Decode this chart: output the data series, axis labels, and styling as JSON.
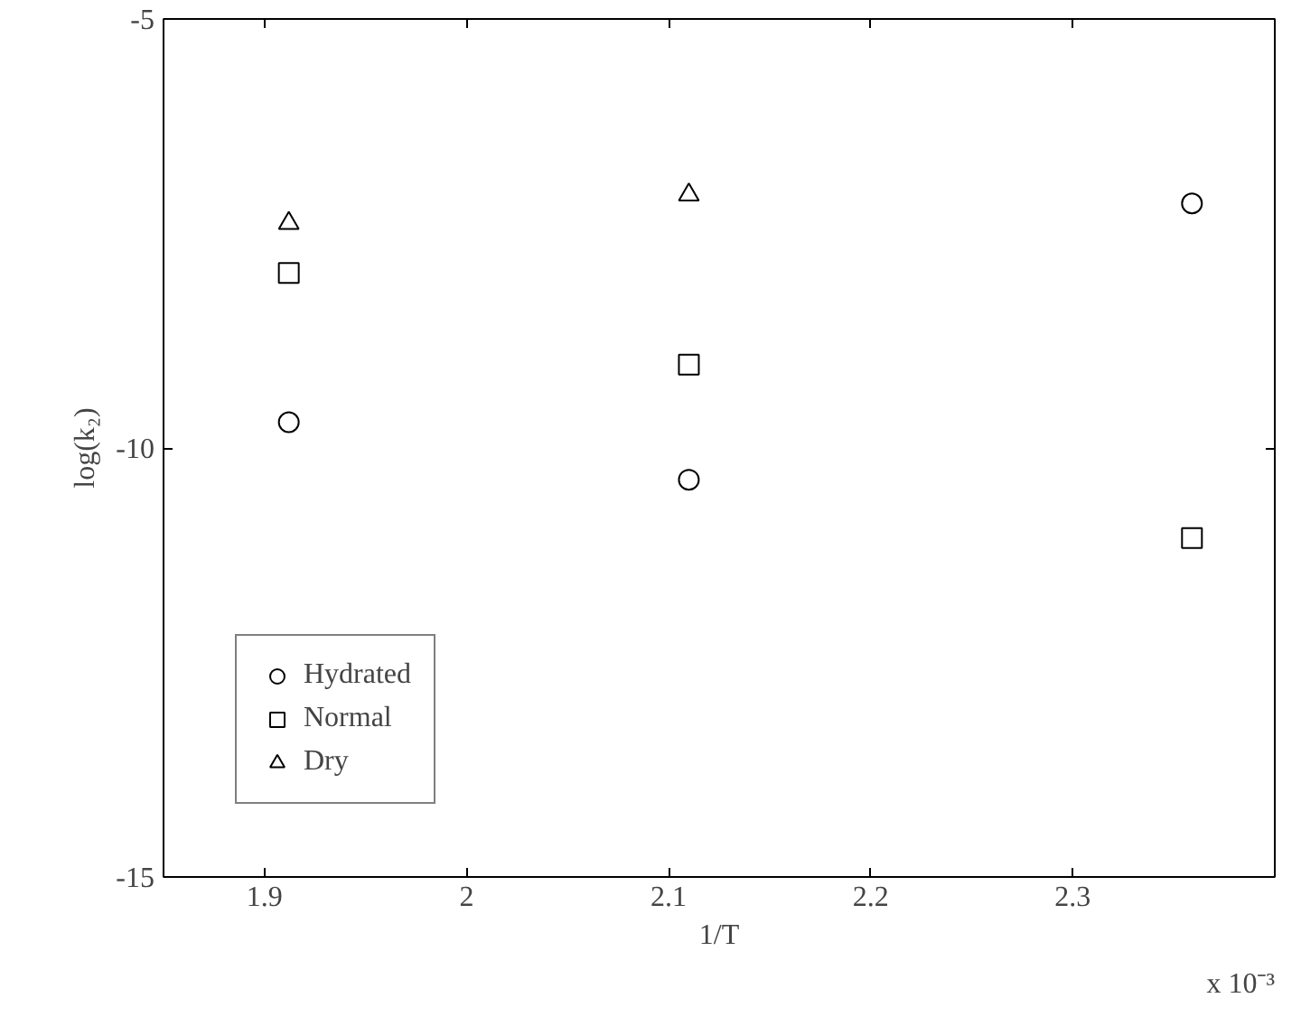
{
  "chart_data": {
    "type": "scatter",
    "xlabel": "1/T",
    "ylabel": "log(k₂)",
    "x": [
      1.912,
      2.11,
      2.359
    ],
    "series": [
      {
        "name": "Hydrated",
        "color": "#000000",
        "marker": "circle",
        "values": [
          -9.7,
          -10.37,
          -7.15
        ]
      },
      {
        "name": "Normal",
        "color": "#000000",
        "marker": "square",
        "values": [
          -7.96,
          -9.03,
          -11.05
        ]
      },
      {
        "name": "Dry",
        "color": "#000000",
        "marker": "triangle",
        "values": [
          -7.38,
          -7.05,
          null
        ]
      }
    ],
    "xlim": [
      1.85,
      2.4
    ],
    "xticks": [
      {
        "value": 1.9,
        "label": "1.9"
      },
      2,
      {
        "value": 2.1,
        "label": "2.1"
      },
      {
        "value": 2.2,
        "label": "2.2"
      },
      {
        "value": 2.3,
        "label": "2.3"
      }
    ],
    "ylim": [
      -15,
      -5
    ],
    "yticks": [
      -15,
      -10,
      -5
    ],
    "annotations": [
      "x 10⁻³"
    ],
    "grid": false,
    "legend": "bottom left"
  }
}
